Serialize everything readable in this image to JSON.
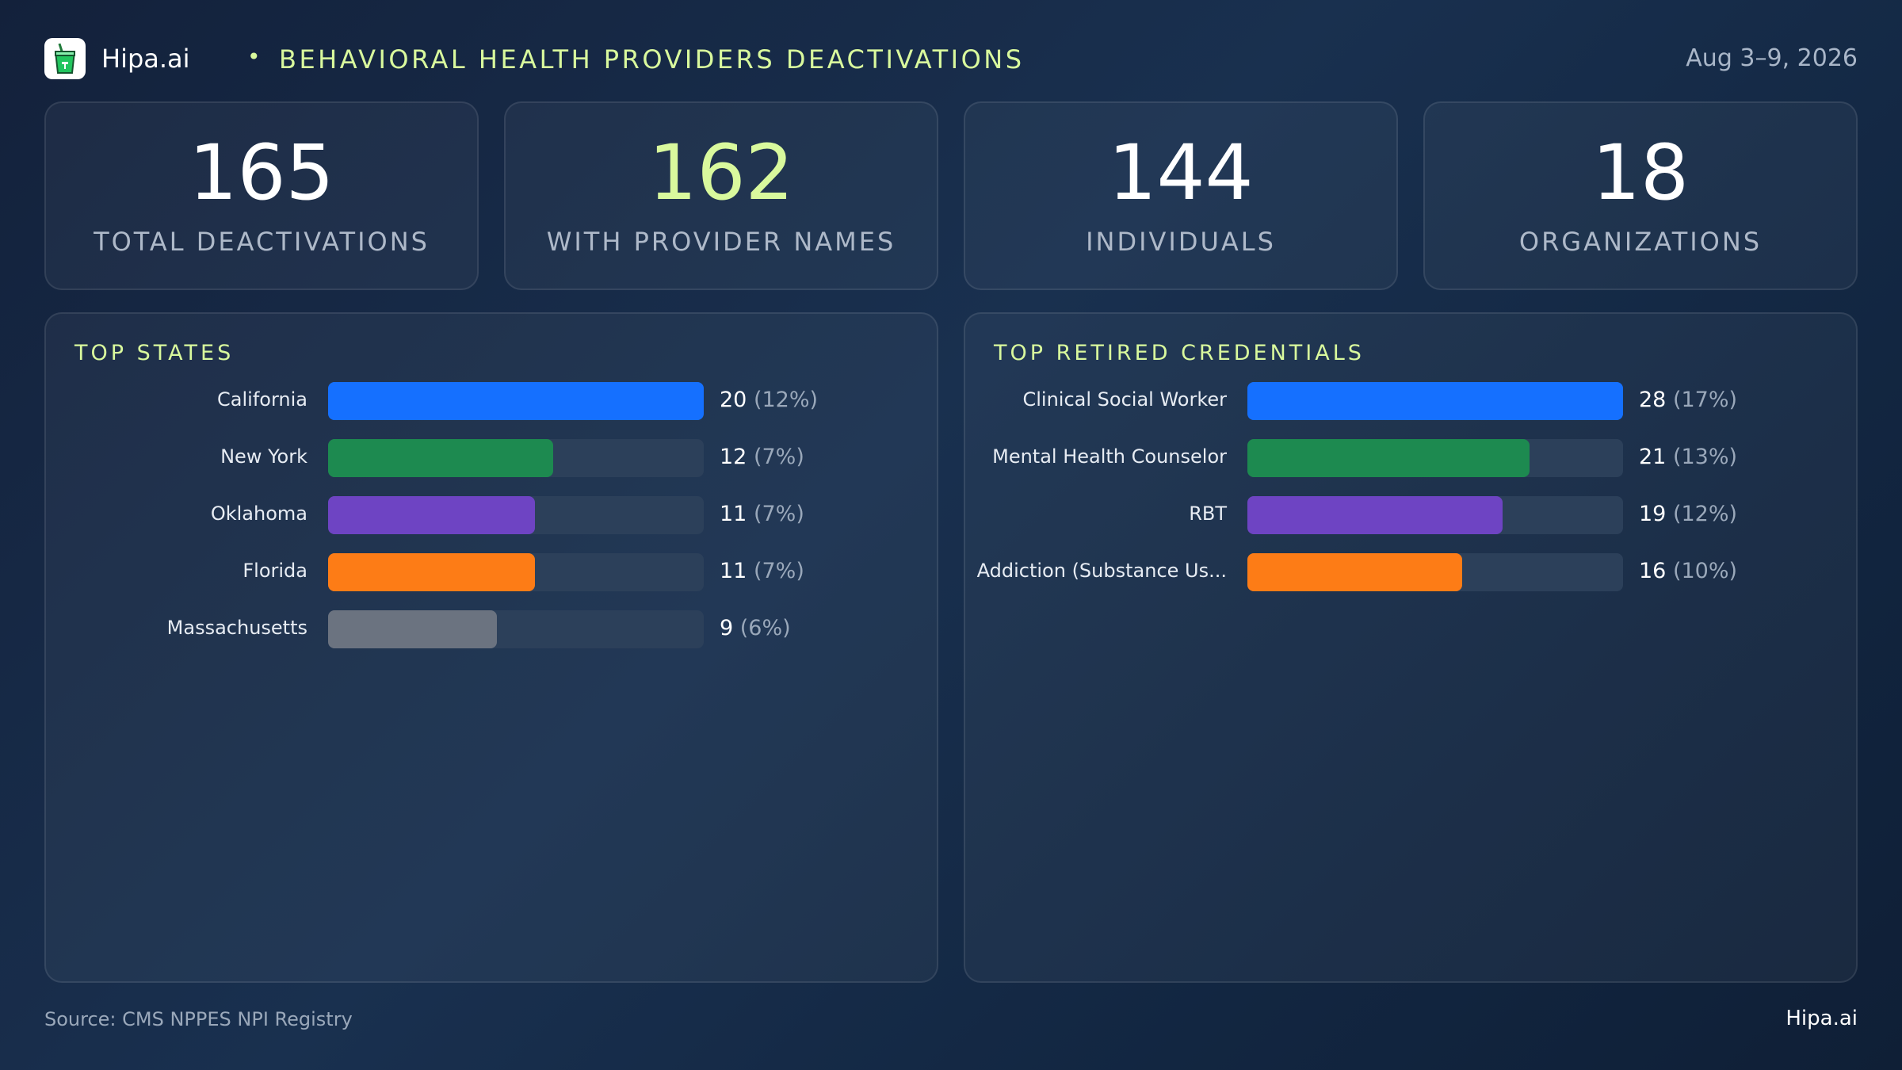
{
  "header": {
    "brand": "Hipa.ai",
    "separator": "•",
    "title": "BEHAVIORAL  HEALTH  PROVIDERS  DEACTIVATIONS",
    "date": "Aug 3–9, 2026",
    "logo_icon": "cup-icon"
  },
  "kpis": [
    {
      "value": "165",
      "label": "TOTAL  DEACTIVATIONS"
    },
    {
      "value": "162",
      "label": "WITH PROVIDER NAMES"
    },
    {
      "value": "144",
      "label": "INDIVIDUALS"
    },
    {
      "value": "18",
      "label": "ORGANIZATIONS"
    }
  ],
  "colors": {
    "accent": "#d9f99d",
    "blue": "#1570ff",
    "green": "#1d8a50",
    "purple": "#6e44c3",
    "orange": "#fd7c16",
    "gray": "#6b7380",
    "track": "#2c405a"
  },
  "chart_data": [
    {
      "type": "bar",
      "title": "TOP STATES",
      "categories": [
        "California",
        "New York",
        "Oklahoma",
        "Florida",
        "Massachusetts"
      ],
      "values": [
        20,
        12,
        11,
        11,
        9
      ],
      "percent_labels": [
        "(12%)",
        "(7%)",
        "(7%)",
        "(7%)",
        "(6%)"
      ],
      "colors": [
        "#1570ff",
        "#1d8a50",
        "#6e44c3",
        "#fd7c16",
        "#6b7380"
      ],
      "xlim": [
        0,
        20
      ],
      "orientation": "horizontal"
    },
    {
      "type": "bar",
      "title": "TOP RETIRED CREDENTIALS",
      "categories": [
        "Clinical Social Worker",
        "Mental Health Counselor",
        "RBT",
        "Addiction (Substance Us..."
      ],
      "values": [
        28,
        21,
        19,
        16
      ],
      "percent_labels": [
        "(17%)",
        "(13%)",
        "(12%)",
        "(10%)"
      ],
      "colors": [
        "#1570ff",
        "#1d8a50",
        "#6e44c3",
        "#fd7c16"
      ],
      "xlim": [
        0,
        28
      ],
      "orientation": "horizontal"
    }
  ],
  "footer": {
    "source": "Source: CMS NPPES NPI Registry",
    "brand": "Hipa.ai"
  }
}
